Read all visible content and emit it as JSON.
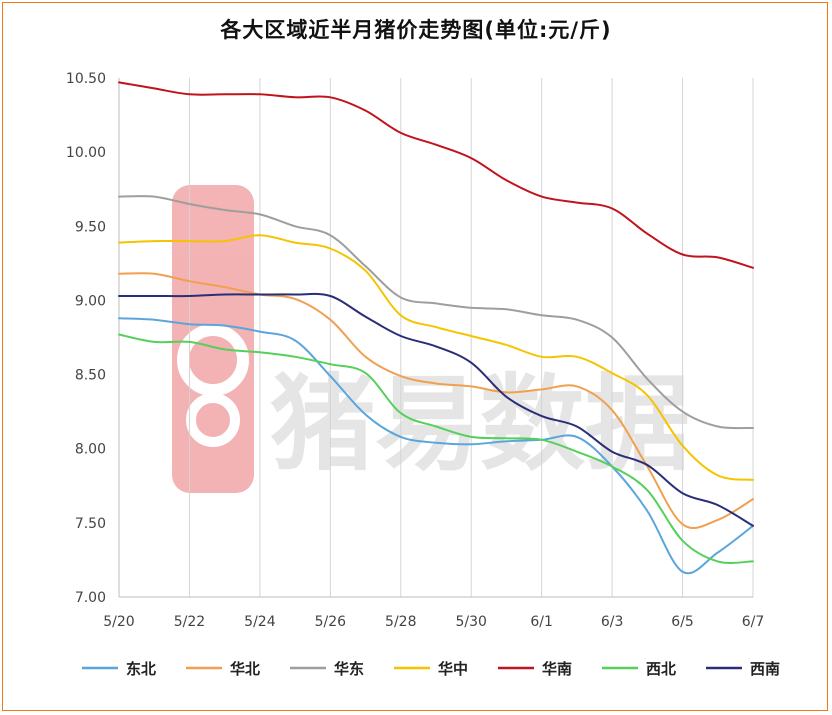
{
  "chart_data": {
    "type": "line",
    "title": "各大区域近半月猪价走势图(单位:元/斤)",
    "xlabel": "",
    "ylabel": "",
    "x": [
      "5/20",
      "5/21",
      "5/22",
      "5/23",
      "5/24",
      "5/25",
      "5/26",
      "5/27",
      "5/28",
      "5/29",
      "5/30",
      "5/31",
      "6/1",
      "6/2",
      "6/3",
      "6/4",
      "6/5",
      "6/6",
      "6/7"
    ],
    "x_tick_labels": [
      "5/20",
      "5/22",
      "5/24",
      "5/26",
      "5/28",
      "5/30",
      "6/1",
      "6/3",
      "6/5",
      "6/7"
    ],
    "ylim": [
      7.0,
      10.5
    ],
    "y_tick_labels": [
      "7.00",
      "7.50",
      "8.00",
      "8.50",
      "9.00",
      "9.50",
      "10.00",
      "10.50"
    ],
    "y_ticks": [
      7.0,
      7.5,
      8.0,
      8.5,
      9.0,
      9.5,
      10.0,
      10.5
    ],
    "grid": "vertical gridlines at each 2-day x tick, horizontal axis baseline only",
    "legend_position": "bottom",
    "series": [
      {
        "name": "东北",
        "color": "#5aa6dc",
        "values": [
          8.88,
          8.87,
          8.84,
          8.83,
          8.79,
          8.73,
          8.49,
          8.23,
          8.08,
          8.04,
          8.03,
          8.05,
          8.06,
          8.08,
          7.88,
          7.58,
          7.17,
          7.3,
          7.48
        ]
      },
      {
        "name": "华北",
        "color": "#f0a050",
        "values": [
          9.18,
          9.18,
          9.13,
          9.09,
          9.04,
          9.01,
          8.87,
          8.62,
          8.49,
          8.44,
          8.42,
          8.38,
          8.4,
          8.42,
          8.26,
          7.88,
          7.49,
          7.52,
          7.66
        ]
      },
      {
        "name": "华东",
        "color": "#9e9e9e",
        "values": [
          9.7,
          9.7,
          9.65,
          9.61,
          9.58,
          9.5,
          9.44,
          9.23,
          9.02,
          8.98,
          8.95,
          8.94,
          8.9,
          8.87,
          8.75,
          8.47,
          8.25,
          8.15,
          8.14
        ]
      },
      {
        "name": "华中",
        "color": "#f5c400",
        "values": [
          9.39,
          9.4,
          9.4,
          9.4,
          9.44,
          9.39,
          9.35,
          9.2,
          8.9,
          8.82,
          8.76,
          8.7,
          8.62,
          8.62,
          8.51,
          8.36,
          8.02,
          7.82,
          7.79
        ]
      },
      {
        "name": "华南",
        "color": "#c0141c",
        "values": [
          10.47,
          10.43,
          10.39,
          10.39,
          10.39,
          10.37,
          10.37,
          10.28,
          10.13,
          10.05,
          9.96,
          9.81,
          9.7,
          9.66,
          9.62,
          9.45,
          9.31,
          9.29,
          9.22
        ]
      },
      {
        "name": "西北",
        "color": "#55d05a",
        "values": [
          8.77,
          8.72,
          8.72,
          8.67,
          8.65,
          8.62,
          8.57,
          8.51,
          8.24,
          8.15,
          8.08,
          8.07,
          8.06,
          7.98,
          7.88,
          7.72,
          7.38,
          7.24,
          7.24
        ]
      },
      {
        "name": "西南",
        "color": "#2a2e78",
        "values": [
          9.03,
          9.03,
          9.03,
          9.04,
          9.04,
          9.04,
          9.03,
          8.89,
          8.76,
          8.69,
          8.58,
          8.35,
          8.22,
          8.15,
          7.98,
          7.89,
          7.7,
          7.62,
          7.48
        ]
      }
    ]
  },
  "watermark": {
    "text": "猪易数据",
    "logo_glyph": "68"
  }
}
